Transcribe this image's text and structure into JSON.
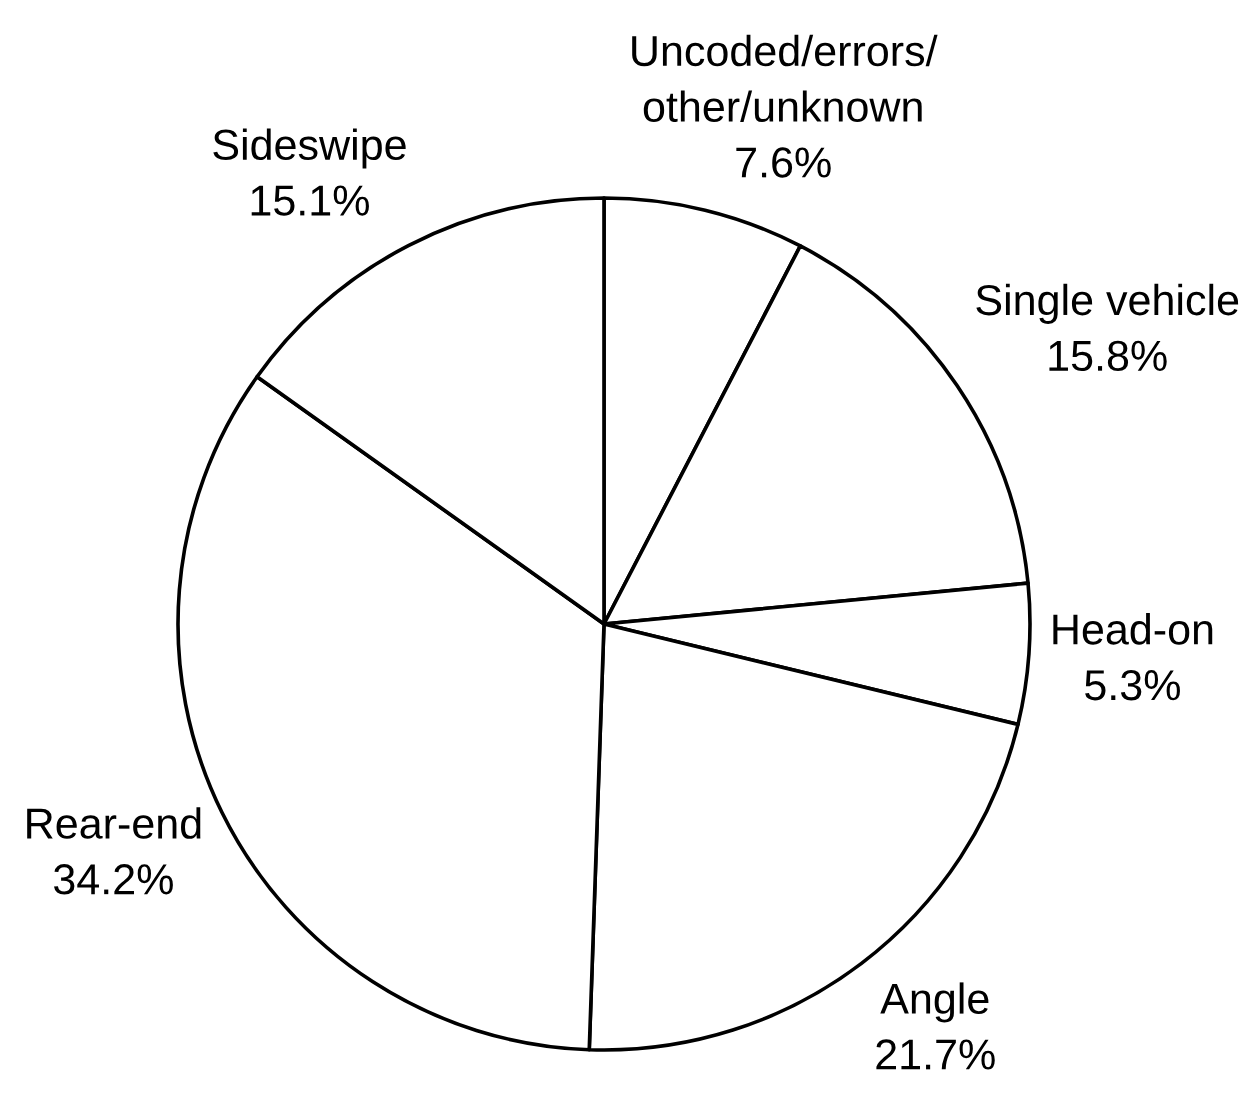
{
  "chart_data": {
    "type": "pie",
    "categories": [
      "Uncoded/errors/\nother/unknown",
      "Single vehicle",
      "Head-on",
      "Angle",
      "Rear-end",
      "Sideswipe"
    ],
    "values": [
      7.6,
      15.8,
      5.3,
      21.7,
      34.2,
      15.1
    ],
    "colors": [
      "#ffffff",
      "#ffffff",
      "#ffffff",
      "#ffffff",
      "#ffffff",
      "#ffffff"
    ],
    "value_labels": [
      "7.6%",
      "15.8%",
      "5.3%",
      "21.7%",
      "34.2%",
      "15.1%"
    ]
  }
}
